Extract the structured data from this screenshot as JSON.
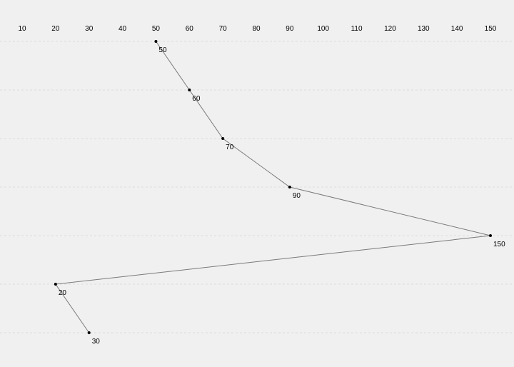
{
  "chart_data": {
    "type": "line",
    "orientation": "horizontal-value-axis-top",
    "x_axis_position": "top",
    "xlim": [
      10,
      150
    ],
    "x_ticks": [
      10,
      20,
      30,
      40,
      50,
      60,
      70,
      80,
      90,
      100,
      110,
      120,
      130,
      140,
      150
    ],
    "x_tick_labels": [
      "10",
      "20",
      "30",
      "40",
      "50",
      "60",
      "70",
      "80",
      "90",
      "100",
      "110",
      "120",
      "130",
      "140",
      "150"
    ],
    "grid": "horizontal dashed",
    "series": [
      {
        "values": [
          50,
          60,
          70,
          90,
          150,
          20,
          30
        ],
        "labels": [
          "50",
          "60",
          "70",
          "90",
          "150",
          "20",
          "30"
        ]
      }
    ],
    "colors": {
      "background": "#f0f0f0",
      "line": "#7a7a7a",
      "point": "#000000",
      "grid": "#dcdcdc"
    }
  }
}
